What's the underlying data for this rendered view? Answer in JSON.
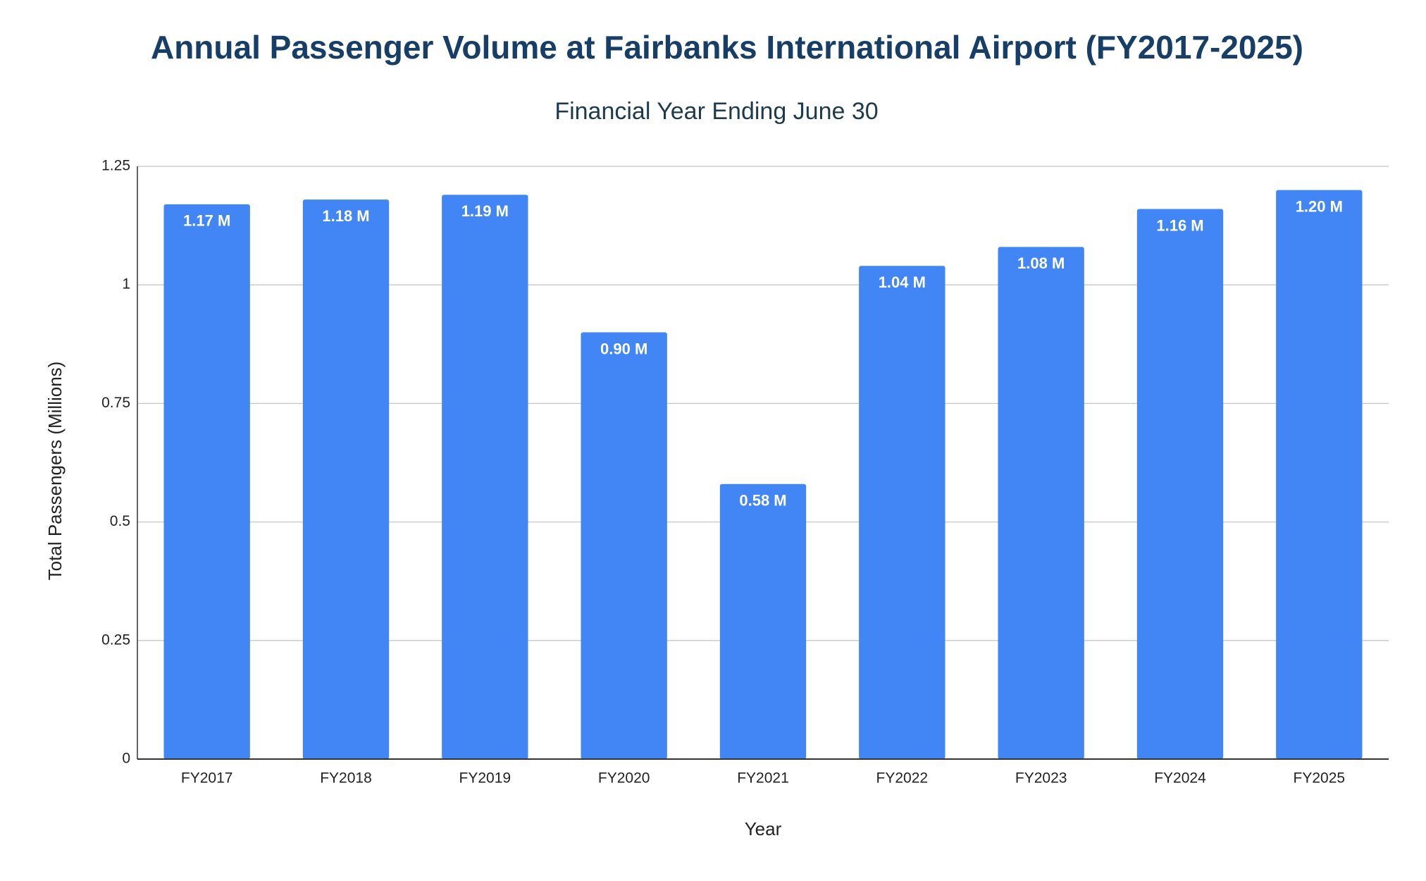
{
  "chart_data": {
    "type": "bar",
    "title": "Annual Passenger Volume at Fairbanks International Airport (FY2017-2025)",
    "subtitle": "Financial Year Ending June 30",
    "x_label": "Year",
    "y_label": "Total Passengers (Millions)",
    "categories": [
      "FY2017",
      "FY2018",
      "FY2019",
      "FY2020",
      "FY2021",
      "FY2022",
      "FY2023",
      "FY2024",
      "FY2025"
    ],
    "values": [
      1.17,
      1.18,
      1.19,
      0.9,
      0.58,
      1.04,
      1.08,
      1.16,
      1.2
    ],
    "value_labels": [
      "1.17 M",
      "1.18 M",
      "1.19 M",
      "0.90 M",
      "0.58 M",
      "1.04 M",
      "1.08 M",
      "1.16 M",
      "1.20 M"
    ],
    "color": "#4285f4",
    "ylim": [
      0,
      1.25
    ],
    "yticks": [
      0,
      0.25,
      0.5,
      0.75,
      1,
      1.25
    ],
    "grid": true
  }
}
